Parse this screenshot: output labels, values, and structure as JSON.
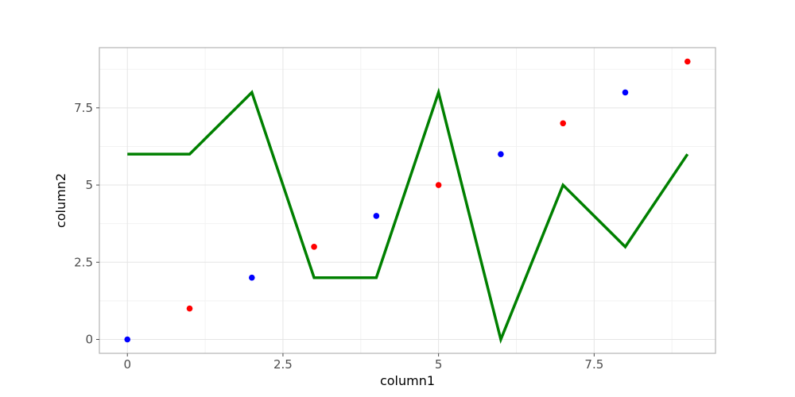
{
  "chart_data": {
    "type": "scatter",
    "title": "",
    "xlabel": "column1",
    "ylabel": "column2",
    "xlim": [
      -0.45,
      9.45
    ],
    "ylim": [
      -0.45,
      9.45
    ],
    "x_ticks": [
      0,
      2.5,
      5,
      7.5
    ],
    "x_tick_labels": [
      "0",
      "2.5",
      "5",
      "7.5"
    ],
    "y_ticks": [
      0,
      2.5,
      5,
      7.5
    ],
    "y_tick_labels": [
      "0",
      "2.5",
      "5",
      "7.5"
    ],
    "x_minor_ticks": [
      1.25,
      3.75,
      6.25,
      8.75
    ],
    "y_minor_ticks": [
      1.25,
      3.75,
      6.25,
      8.75
    ],
    "grid": true,
    "legend": "none",
    "series": [
      {
        "kind": "line",
        "color": "#008000",
        "x": [
          0,
          1,
          2,
          3,
          4,
          5,
          6,
          7,
          8,
          9
        ],
        "y": [
          6,
          6,
          8,
          2,
          2,
          8,
          0,
          5,
          3,
          6
        ]
      },
      {
        "kind": "points",
        "x": [
          0,
          1,
          2,
          3,
          4,
          5,
          6,
          7,
          8,
          9
        ],
        "y": [
          0,
          1,
          2,
          3,
          4,
          5,
          6,
          7,
          8,
          9
        ],
        "colors": [
          "#0000ff",
          "#ff0000",
          "#0000ff",
          "#ff0000",
          "#0000ff",
          "#ff0000",
          "#0000ff",
          "#ff0000",
          "#0000ff",
          "#ff0000"
        ]
      }
    ]
  }
}
